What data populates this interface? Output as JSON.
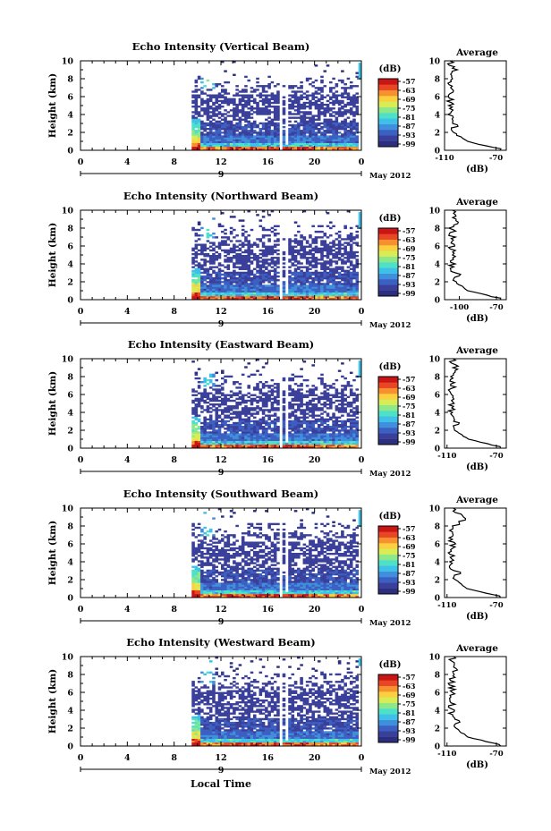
{
  "chart_data": {
    "type": "heatmap",
    "common": {
      "ylabel": "Height (km)",
      "y_ticks": [
        0,
        2,
        4,
        6,
        8,
        10
      ],
      "ylim": [
        0,
        10
      ],
      "x_ticks": [
        "0",
        "4",
        "8",
        "12",
        "16",
        "20",
        "0"
      ],
      "xlim": [
        0,
        24
      ],
      "date_day_label": "9",
      "date_label": "May 2012",
      "xlabel": "Local Time",
      "colorbar_unit": "(dB)",
      "colorbar_ticks": [
        "-57",
        "-63",
        "-69",
        "-75",
        "-81",
        "-87",
        "-93",
        "-99"
      ],
      "colorbar_colors": [
        "#ffffff",
        "#ffe2e2",
        "#ffffff",
        "#ffffff",
        "#ffffff",
        "#ffffff",
        "#ffffff",
        "#ffffff",
        "#ffffff",
        "#ffffff",
        "#ffffff",
        "#ffffff",
        "#ffffff",
        "#ffffff",
        "#ffffff",
        "#ffffff",
        "#ffffff",
        "#ffffff",
        "#ffffff",
        "#ffffff",
        "#ffffff",
        "#ffffff",
        "#ffffff",
        "#ffffff",
        "#ffffff",
        "#ffffff",
        "#ffffff",
        "#ffffff",
        "#ffffff",
        "#ffffff",
        "#ffffff",
        "#ffffff",
        "#ffffff",
        "#ffffff",
        "#ffffff",
        "#ffffff",
        "#ffffff",
        "#ffffff",
        "#ffffff",
        "#ffffff",
        "#ffffff",
        "#ffffff",
        "#ffffff",
        "#ffffff",
        "#ffffff",
        "#ffffff",
        "#ffffff",
        "#ffffff"
      ],
      "profile_title": "Average",
      "profile_xlabel": "(dB)",
      "profile_y_ticks": [
        0,
        2,
        4,
        6,
        8,
        10
      ]
    },
    "panels": [
      {
        "title": "Echo Intensity (Vertical Beam)",
        "beam": "vertical",
        "profile_xlim": [
          -110,
          -62
        ],
        "profile_x_ticks": [
          "-110",
          "-70"
        ]
      },
      {
        "title": "Echo Intensity (Northward Beam)",
        "beam": "north",
        "profile_xlim": [
          -112,
          -62
        ],
        "profile_x_ticks": [
          "-100",
          "-70"
        ]
      },
      {
        "title": "Echo Intensity (Eastward Beam)",
        "beam": "east",
        "profile_xlim": [
          -112,
          -62
        ],
        "profile_x_ticks": [
          "-110",
          "-70"
        ]
      },
      {
        "title": "Echo Intensity (Southward Beam)",
        "beam": "south",
        "profile_xlim": [
          -112,
          -62
        ],
        "profile_x_ticks": [
          "-110",
          "-70"
        ]
      },
      {
        "title": "Echo Intensity (Westward Beam)",
        "beam": "west",
        "profile_xlim": [
          -112,
          -62
        ],
        "profile_x_ticks": [
          "-110",
          "-70"
        ]
      }
    ]
  }
}
